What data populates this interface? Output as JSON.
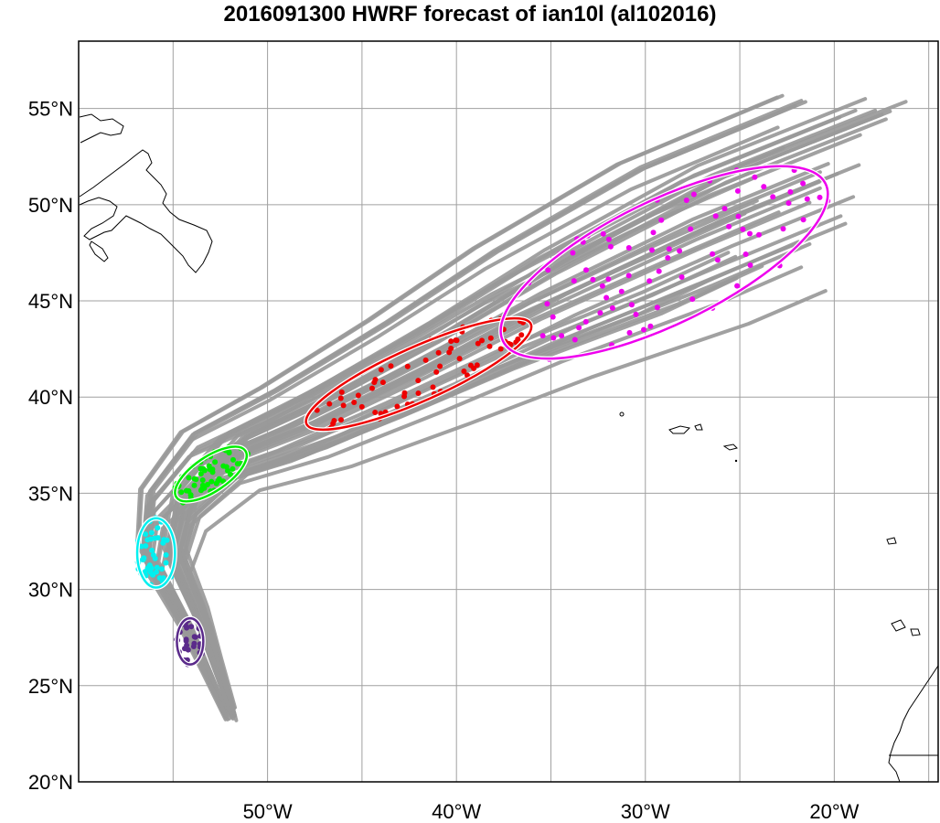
{
  "title": "2016091300 HWRF forecast of ian10l (al102016)",
  "axes": {
    "lon_labels": [
      "50°W",
      "40°W",
      "30°W",
      "20°W"
    ],
    "lat_labels": [
      "55°N",
      "50°N",
      "45°N",
      "40°N",
      "35°N",
      "30°N",
      "25°N",
      "20°N"
    ]
  },
  "chart_data": {
    "type": "scatter",
    "title": "2016091300 HWRF forecast of ian10l (al102016)",
    "xlim": [
      -60,
      -14.5
    ],
    "ylim": [
      20,
      58.5
    ],
    "grid": true,
    "track_color": "#999999",
    "groups": [
      {
        "color": "#5a2a8a",
        "center": [
          -54.1,
          27.3
        ],
        "semi_axes": [
          0.7,
          1.2
        ],
        "angle": 0
      },
      {
        "color": "#00f0f0",
        "center": [
          -55.9,
          31.9
        ],
        "semi_axes": [
          1.0,
          1.8
        ],
        "angle": 0
      },
      {
        "color": "#00ee00",
        "center": [
          -53.0,
          36.0
        ],
        "semi_axes": [
          2.2,
          0.9
        ],
        "angle": 34
      },
      {
        "color": "#ee0000",
        "center": [
          -42.0,
          41.2
        ],
        "semi_axes": [
          6.5,
          1.4
        ],
        "angle": 24
      },
      {
        "color": "#ee00ee",
        "center": [
          -29.0,
          47.0
        ],
        "semi_axes": [
          9.5,
          3.2
        ],
        "angle": 26
      }
    ]
  }
}
